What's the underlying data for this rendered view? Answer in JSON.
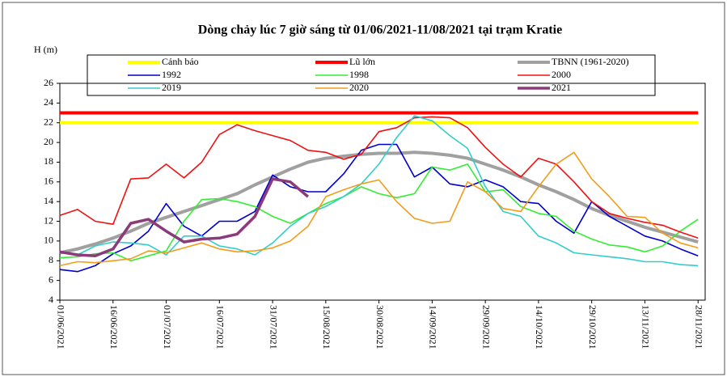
{
  "chart_data": {
    "type": "line",
    "title": "Dòng chảy lúc 7 giờ sáng từ 01/06/2021-11/08/2021 tại trạm Kratie",
    "y_label": "H (m)",
    "x": [
      "01/06/2021",
      "06/06/2021",
      "11/06/2021",
      "16/06/2021",
      "21/06/2021",
      "26/06/2021",
      "01/07/2021",
      "06/07/2021",
      "11/07/2021",
      "16/07/2021",
      "21/07/2021",
      "26/07/2021",
      "31/07/2021",
      "05/08/2021",
      "10/08/2021",
      "15/08/2021",
      "20/08/2021",
      "25/08/2021",
      "30/08/2021",
      "04/09/2021",
      "09/09/2021",
      "14/09/2021",
      "19/09/2021",
      "24/09/2021",
      "29/09/2021",
      "04/10/2021",
      "09/10/2021",
      "14/10/2021",
      "19/10/2021",
      "24/10/2021",
      "29/10/2021",
      "03/11/2021",
      "08/11/2021",
      "13/11/2021",
      "18/11/2021",
      "23/11/2021",
      "28/11/2021"
    ],
    "xlim": [
      "01/06/2021",
      "30/11/2021"
    ],
    "xticks": [
      "01/06/2021",
      "16/06/2021",
      "01/07/2021",
      "16/07/2021",
      "31/07/2021",
      "15/08/2021",
      "30/08/2021",
      "14/09/2021",
      "29/09/2021",
      "14/10/2021",
      "29/10/2021",
      "13/11/2021",
      "28/11/2021"
    ],
    "ylim": [
      4,
      26
    ],
    "yticks": [
      4,
      6,
      8,
      10,
      12,
      14,
      16,
      18,
      20,
      22,
      24,
      26
    ],
    "series": [
      {
        "name": "Cảnh báo",
        "color": "#ffff00",
        "values": [
          22,
          22,
          22,
          22,
          22,
          22,
          22,
          22,
          22,
          22,
          22,
          22,
          22,
          22,
          22,
          22,
          22,
          22,
          22,
          22,
          22,
          22,
          22,
          22,
          22,
          22,
          22,
          22,
          22,
          22,
          22,
          22,
          22,
          22,
          22,
          22,
          22
        ]
      },
      {
        "name": "Lũ lớn",
        "color": "#ff0000",
        "values": [
          23,
          23,
          23,
          23,
          23,
          23,
          23,
          23,
          23,
          23,
          23,
          23,
          23,
          23,
          23,
          23,
          23,
          23,
          23,
          23,
          23,
          23,
          23,
          23,
          23,
          23,
          23,
          23,
          23,
          23,
          23,
          23,
          23,
          23,
          23,
          23,
          23
        ]
      },
      {
        "name": "TBNN (1961-2020)",
        "color": "#a0a0a0",
        "values": [
          8.8,
          9.2,
          9.7,
          10.3,
          11,
          11.8,
          12.4,
          13,
          13.6,
          14.2,
          14.8,
          15.7,
          16.5,
          17.3,
          18,
          18.4,
          18.6,
          18.8,
          18.9,
          18.9,
          19,
          18.9,
          18.7,
          18.4,
          17.8,
          17.2,
          16.5,
          15.7,
          15,
          14.2,
          13.3,
          12.6,
          12,
          11.4,
          10.9,
          10.4,
          9.9
        ]
      },
      {
        "name": "1992",
        "color": "#0000cc",
        "values": [
          7.1,
          6.9,
          7.5,
          8.7,
          9.5,
          11,
          13.8,
          11.5,
          10.5,
          12,
          12,
          13,
          16.7,
          15.5,
          15,
          15,
          16.8,
          19.2,
          19.8,
          19.8,
          16.5,
          17.5,
          15.8,
          15.5,
          16.2,
          15.5,
          14,
          13.8,
          12,
          10.8,
          14,
          12.5,
          11.5,
          10.5,
          10,
          9.2,
          8.5
        ]
      },
      {
        "name": "1998",
        "color": "#33ee33",
        "values": [
          8.3,
          8.4,
          8.7,
          8.8,
          8,
          8.5,
          9,
          12,
          14.2,
          14.3,
          14,
          13.5,
          12.5,
          11.8,
          12.8,
          13.8,
          14.5,
          15.5,
          14.8,
          14.4,
          14.8,
          17.5,
          17.2,
          17.8,
          15,
          15.2,
          13.5,
          12.8,
          12.5,
          11,
          10.2,
          9.6,
          9.4,
          8.9,
          9.5,
          11,
          12.2
        ]
      },
      {
        "name": "2000",
        "color": "#ee1111",
        "values": [
          12.6,
          13.2,
          12,
          11.7,
          16.3,
          16.4,
          17.8,
          16.4,
          18,
          20.8,
          21.8,
          21.2,
          20.7,
          20.2,
          19.2,
          19,
          18.3,
          18.8,
          21.1,
          21.5,
          22.5,
          22.6,
          22.5,
          21.5,
          19.5,
          17.8,
          16.5,
          18.4,
          17.8,
          16,
          14,
          12.8,
          12.3,
          11.9,
          11.6,
          10.9,
          10.3
        ]
      },
      {
        "name": "2019",
        "color": "#33cccc",
        "values": [
          8.8,
          8.6,
          9.5,
          9.9,
          9.8,
          9.6,
          8.6,
          10.5,
          10.5,
          9.5,
          9.2,
          8.6,
          9.8,
          11.5,
          12.8,
          13.5,
          14.5,
          15.8,
          17.8,
          20.5,
          22.7,
          22.2,
          20.7,
          19.4,
          15.5,
          13,
          12.5,
          10.5,
          9.8,
          8.8,
          8.6,
          8.4,
          8.2,
          7.9,
          7.9,
          7.6,
          7.5
        ]
      },
      {
        "name": "2020",
        "color": "#f39c1a",
        "values": [
          7.5,
          7.9,
          7.8,
          8,
          8.2,
          9,
          8.8,
          9.3,
          9.8,
          9.2,
          8.9,
          9,
          9.3,
          10,
          11.5,
          14.5,
          15.2,
          15.8,
          16.2,
          14,
          12.3,
          11.8,
          12,
          16,
          15,
          13.3,
          13,
          15.5,
          17.8,
          19,
          16.3,
          14.5,
          12.5,
          12.4,
          10.8,
          9.8,
          9.3
        ]
      },
      {
        "name": "2021",
        "color": "#8b3a7a",
        "values": [
          8.9,
          8.6,
          8.5,
          9.2,
          11.8,
          12.2,
          11,
          9.9,
          10.2,
          10.3,
          10.7,
          12.5,
          16.3,
          16,
          14.5,
          null,
          null,
          null,
          null,
          null,
          null,
          null,
          null,
          null,
          null,
          null,
          null,
          null,
          null,
          null,
          null,
          null,
          null,
          null,
          null,
          null,
          null
        ]
      }
    ]
  }
}
